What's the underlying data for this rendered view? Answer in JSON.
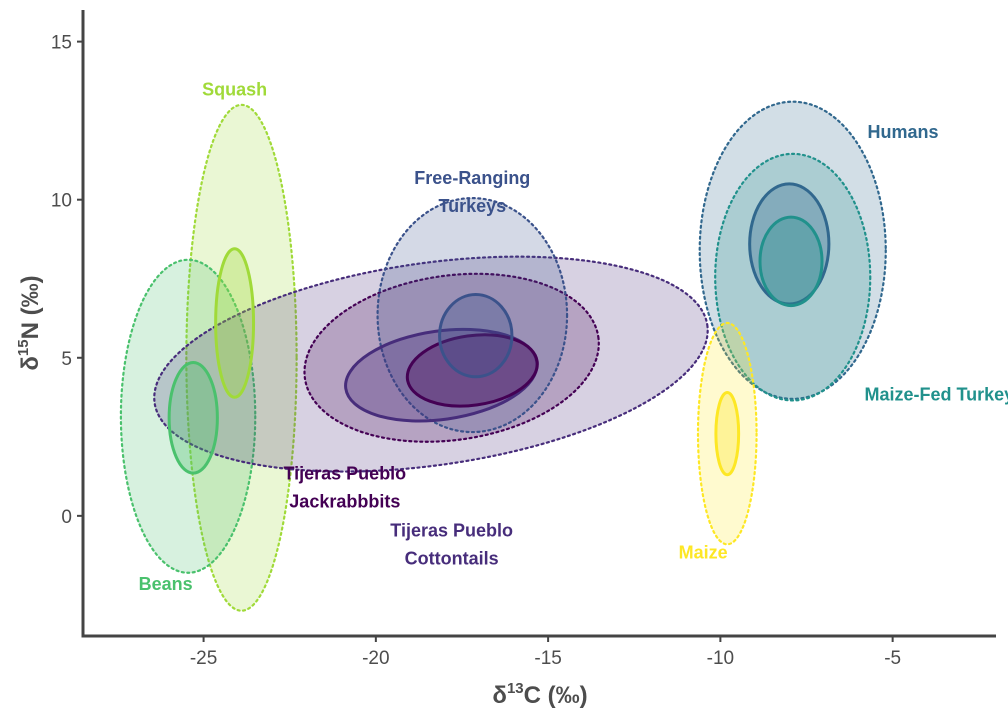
{
  "chart_data": {
    "type": "scatter",
    "subtype": "isotope-ellipse-plot",
    "xlabel": {
      "prefix": "δ",
      "sup": "13",
      "suffix": "C (‰)"
    },
    "ylabel": {
      "prefix": "δ",
      "sup": "15",
      "suffix": "N (‰)"
    },
    "xlim": [
      -28.5,
      -2
    ],
    "ylim": [
      -3.8,
      16
    ],
    "x_ticks": [
      -25,
      -20,
      -15,
      -10,
      -5
    ],
    "y_ticks": [
      0,
      5,
      10,
      15
    ],
    "x_tick_labels": [
      "-25",
      "-20",
      "-15",
      "-10",
      "-5"
    ],
    "y_tick_labels": [
      "0",
      "5",
      "10",
      "15"
    ],
    "grid": false,
    "legend": "none (direct labels)",
    "series": [
      {
        "name": "Squash",
        "color": "#a0da39",
        "label_lines": [
          "Squash"
        ],
        "label_anchor": {
          "x": -24.1,
          "y": 13.3
        },
        "outer_ellipse": {
          "cx": -23.9,
          "cy": 5.0,
          "rx": 1.6,
          "ry": 8.0,
          "angle_deg": 0
        },
        "inner_ellipse": {
          "cx": -24.1,
          "cy": 6.1,
          "rx": 0.55,
          "ry": 2.35,
          "angle_deg": 0
        }
      },
      {
        "name": "Beans",
        "color": "#4ac16d",
        "label_lines": [
          "Beans"
        ],
        "label_anchor": {
          "x": -26.1,
          "y": -2.35
        },
        "outer_ellipse": {
          "cx": -25.45,
          "cy": 3.15,
          "rx": 1.95,
          "ry": 4.95,
          "angle_deg": 0
        },
        "inner_ellipse": {
          "cx": -25.3,
          "cy": 3.1,
          "rx": 0.7,
          "ry": 1.75,
          "angle_deg": 0
        }
      },
      {
        "name": "Tijeras Pueblo Cottontails",
        "color": "#472d7b",
        "label_lines": [
          "Tijeras Pueblo",
          "Cottontails"
        ],
        "label_anchor": {
          "x": -17.8,
          "y": -0.65
        },
        "outer_ellipse": {
          "cx": -18.4,
          "cy": 4.8,
          "rx": 8.1,
          "ry": 3.2,
          "angle_deg": 8
        },
        "inner_ellipse": {
          "cx": -18.1,
          "cy": 4.45,
          "rx": 2.8,
          "ry": 1.4,
          "angle_deg": 8
        }
      },
      {
        "name": "Tijeras Pueblo Jackrabbbits",
        "color": "#440154",
        "label_lines": [
          "Tijeras Pueblo",
          "Jackrabbbits"
        ],
        "label_anchor": {
          "x": -20.9,
          "y": 1.15
        },
        "outer_ellipse": {
          "cx": -17.8,
          "cy": 5.0,
          "rx": 4.3,
          "ry": 2.6,
          "angle_deg": 8
        },
        "inner_ellipse": {
          "cx": -17.2,
          "cy": 4.6,
          "rx": 1.9,
          "ry": 1.1,
          "angle_deg": 8
        }
      },
      {
        "name": "Free-Ranging Turkeys",
        "color": "#3b528b",
        "label_lines": [
          "Free-Ranging",
          "Turkeys"
        ],
        "label_anchor": {
          "x": -17.2,
          "y": 10.5
        },
        "outer_ellipse": {
          "cx": -17.2,
          "cy": 6.35,
          "rx": 2.75,
          "ry": 3.7,
          "angle_deg": 0
        },
        "inner_ellipse": {
          "cx": -17.1,
          "cy": 5.7,
          "rx": 1.05,
          "ry": 1.3,
          "angle_deg": 0
        }
      },
      {
        "name": "Humans",
        "color": "#31688e",
        "label_lines": [
          "Humans"
        ],
        "label_anchor": {
          "x": -4.7,
          "y": 11.95
        },
        "outer_ellipse": {
          "cx": -7.9,
          "cy": 8.4,
          "rx": 2.7,
          "ry": 4.7,
          "angle_deg": 0
        },
        "inner_ellipse": {
          "cx": -8.0,
          "cy": 8.6,
          "rx": 1.15,
          "ry": 1.9,
          "angle_deg": 0
        }
      },
      {
        "name": "Maize-Fed Turkeys",
        "color": "#21918c",
        "label_lines": [
          "Maize-Fed Turkeys"
        ],
        "label_anchor": {
          "x": -3.5,
          "y": 3.65
        },
        "outer_ellipse": {
          "cx": -7.9,
          "cy": 7.55,
          "rx": 2.25,
          "ry": 3.9,
          "angle_deg": 0
        },
        "inner_ellipse": {
          "cx": -7.95,
          "cy": 8.05,
          "rx": 0.9,
          "ry": 1.4,
          "angle_deg": 0
        }
      },
      {
        "name": "Maize",
        "color": "#fde725",
        "label_lines": [
          "Maize"
        ],
        "label_anchor": {
          "x": -10.5,
          "y": -1.35
        },
        "outer_ellipse": {
          "cx": -9.8,
          "cy": 2.6,
          "rx": 0.85,
          "ry": 3.5,
          "angle_deg": 0
        },
        "inner_ellipse": {
          "cx": -9.8,
          "cy": 2.6,
          "rx": 0.33,
          "ry": 1.3,
          "angle_deg": 0
        }
      }
    ]
  }
}
